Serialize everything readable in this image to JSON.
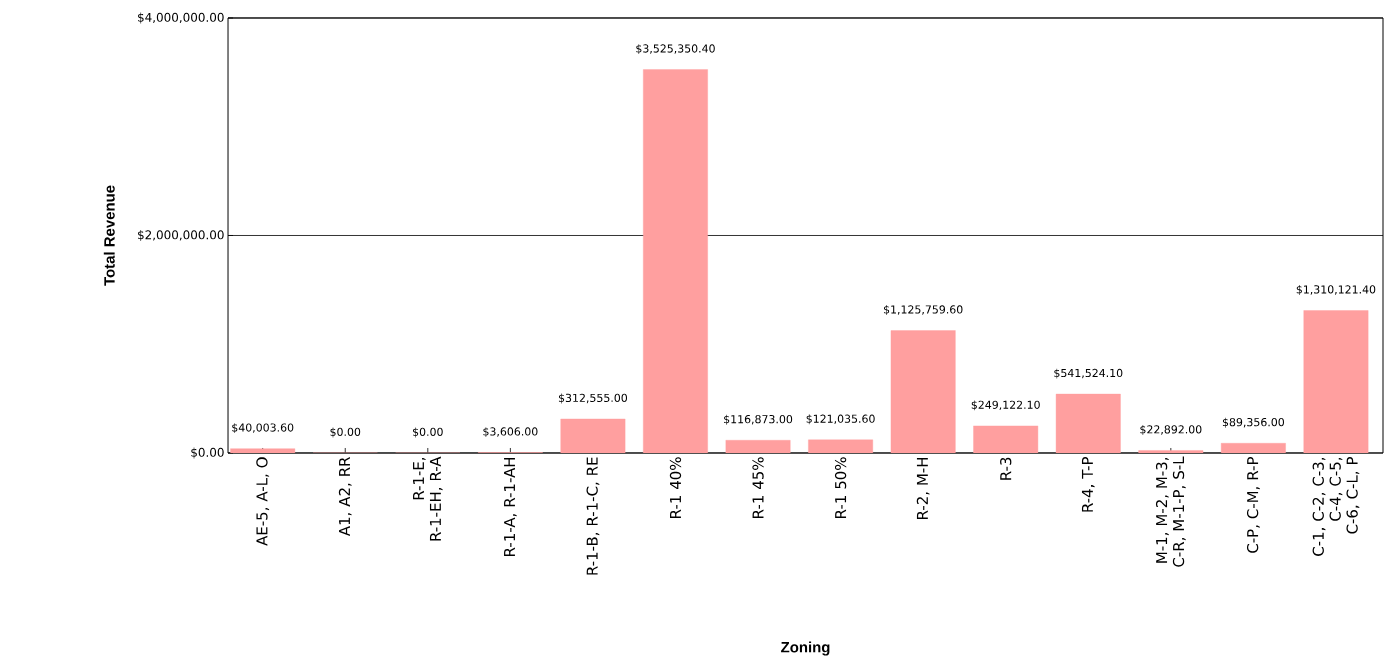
{
  "chart_data": {
    "type": "bar",
    "xlabel": "Zoning",
    "ylabel": "Total Revenue",
    "categories": [
      "AE-5, A-L, O",
      "A1, A2, RR",
      "R-1-E, R-1-EH, R-A",
      "R-1-A, R-1-AH",
      "R-1-B, R-1-C, RE",
      "R-1 40%",
      "R-1 45%",
      "R-1 50%",
      "R-2, M-H",
      "R-3",
      "R-4, T-P",
      "M-1, M-2, M-3, C-R, M-1-P, S-L",
      "C-P, C-M, R-P",
      "C-1, C-2, C-3, C-4, C-5, C-6, C-L, P"
    ],
    "values": [
      40003.6,
      0,
      0,
      3606,
      312555,
      3525350.4,
      116873,
      121035.6,
      1125759.6,
      249122.1,
      541524.1,
      22892,
      89356,
      1310121.4
    ],
    "value_labels": [
      "$40,003.60",
      "$0.00",
      "$0.00",
      "$3,606.00",
      "$312,555.00",
      "$3,525,350.40",
      "$116,873.00",
      "$121,035.60",
      "$1,125,759.60",
      "$249,122.10",
      "$541,524.10",
      "$22,892.00",
      "$89,356.00",
      "$1,310,121.40"
    ],
    "color": "#ff9f9f",
    "ylim": [
      0,
      4000000
    ],
    "yticks": [
      {
        "value": 0,
        "label": "$0.00"
      },
      {
        "value": 2000000,
        "label": "$2,000,000.00"
      },
      {
        "value": 4000000,
        "label": "$4,000,000.00"
      }
    ],
    "grid": "y"
  }
}
